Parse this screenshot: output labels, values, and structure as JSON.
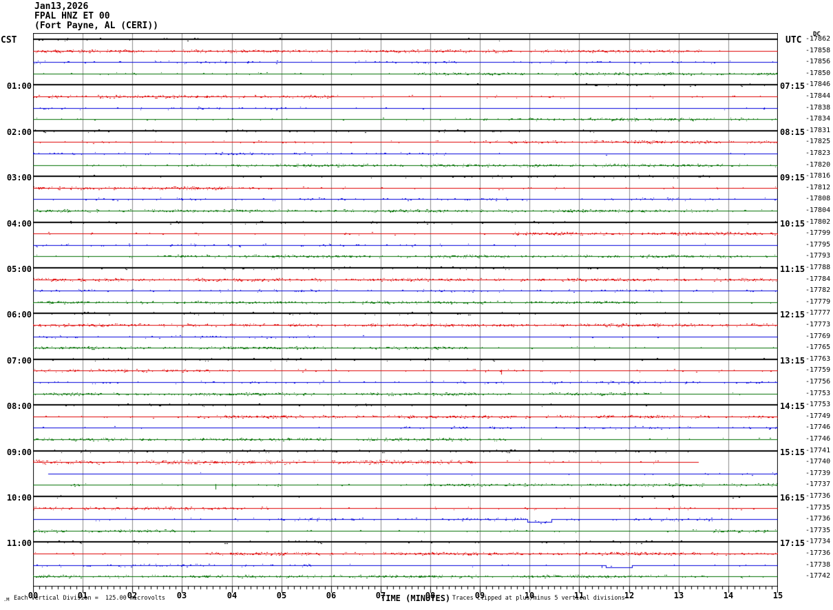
{
  "header": {
    "date_line": "Jan13,2026",
    "station_line": "FPAL HNZ ET 00",
    "location_line": "(Fort Payne, AL (CERI))"
  },
  "axes": {
    "left_header": "CST",
    "right_header": "UTC",
    "right_dc_label": "DC",
    "x_label": "TIME (MINUTES)",
    "x_tick_labels": [
      "00",
      "01",
      "02",
      "03",
      "04",
      "05",
      "06",
      "07",
      "08",
      "09",
      "10",
      "11",
      "12",
      "13",
      "14",
      "15"
    ],
    "minor_ticks_per_minute": 8
  },
  "footer": {
    "watermark": ".M",
    "scale_note": "Each Vertical Division =  125.00 microvolts",
    "clip_note": "Traces clipped at plus/minus 5 vertical divisions"
  },
  "colors": {
    "black": "#000000",
    "red": "#e00000",
    "blue": "#0000dd",
    "green": "#007000",
    "grid": "#8a8a8a",
    "frame": "#000000",
    "text": "#000000",
    "background": "#ffffff"
  },
  "chart_data": {
    "type": "line",
    "subtype": "helicorder",
    "title": "FPAL HNZ ET 00 (Fort Payne, AL (CERI)) Jan13,2026",
    "xlabel": "TIME (MINUTES)",
    "x_range_minutes": [
      0,
      15
    ],
    "minutes_per_row": 15,
    "left_times_are": "CST row start",
    "right_times_are": "UTC row end",
    "trace_color_cycle": [
      "black",
      "red",
      "blue",
      "green"
    ],
    "noise": {
      "black": {
        "d": 0.1,
        "a": 1.6
      },
      "red": {
        "d": 0.45,
        "a": 1.4
      },
      "blue": {
        "d": 0.13,
        "a": 1.3
      },
      "green": {
        "d": 0.42,
        "a": 1.2
      }
    },
    "rows": [
      {
        "n": 1,
        "c": "black",
        "v": "-17862",
        "dc": true
      },
      {
        "n": 2,
        "c": "red",
        "v": "-17858"
      },
      {
        "n": 3,
        "c": "blue",
        "v": "-17856"
      },
      {
        "n": 4,
        "c": "green",
        "v": "-17850"
      },
      {
        "n": 5,
        "c": "black",
        "v": "-17846",
        "cst": "01:00",
        "utc": "07:15"
      },
      {
        "n": 6,
        "c": "red",
        "v": "-17844"
      },
      {
        "n": 7,
        "c": "blue",
        "v": "-17838"
      },
      {
        "n": 8,
        "c": "green",
        "v": "-17834"
      },
      {
        "n": 9,
        "c": "black",
        "v": "-17831",
        "cst": "02:00",
        "utc": "08:15"
      },
      {
        "n": 10,
        "c": "red",
        "v": "-17825"
      },
      {
        "n": 11,
        "c": "blue",
        "v": "-17823"
      },
      {
        "n": 12,
        "c": "green",
        "v": "-17820"
      },
      {
        "n": 13,
        "c": "black",
        "v": "-17816",
        "cst": "03:00",
        "utc": "09:15"
      },
      {
        "n": 14,
        "c": "red",
        "v": "-17812"
      },
      {
        "n": 15,
        "c": "blue",
        "v": "-17808"
      },
      {
        "n": 16,
        "c": "green",
        "v": "-17804"
      },
      {
        "n": 17,
        "c": "black",
        "v": "-17802",
        "cst": "04:00",
        "utc": "10:15"
      },
      {
        "n": 18,
        "c": "red",
        "v": "-17799"
      },
      {
        "n": 19,
        "c": "blue",
        "v": "-17795"
      },
      {
        "n": 20,
        "c": "green",
        "v": "-17793"
      },
      {
        "n": 21,
        "c": "black",
        "v": "-17788",
        "cst": "05:00",
        "utc": "11:15"
      },
      {
        "n": 22,
        "c": "red",
        "v": "-17784"
      },
      {
        "n": 23,
        "c": "blue",
        "v": "-17782"
      },
      {
        "n": 24,
        "c": "green",
        "v": "-17779"
      },
      {
        "n": 25,
        "c": "black",
        "v": "-17777",
        "cst": "06:00",
        "utc": "12:15"
      },
      {
        "n": 26,
        "c": "red",
        "v": "-17773"
      },
      {
        "n": 27,
        "c": "blue",
        "v": "-17769"
      },
      {
        "n": 28,
        "c": "green",
        "v": "-17765"
      },
      {
        "n": 29,
        "c": "black",
        "v": "-17763",
        "cst": "07:00",
        "utc": "13:15"
      },
      {
        "n": 30,
        "c": "red",
        "v": "-17759"
      },
      {
        "n": 31,
        "c": "blue",
        "v": "-17756"
      },
      {
        "n": 32,
        "c": "green",
        "v": "-17753"
      },
      {
        "n": 33,
        "c": "black",
        "v": "-17753",
        "cst": "08:00",
        "utc": "14:15"
      },
      {
        "n": 34,
        "c": "red",
        "v": "-17749"
      },
      {
        "n": 35,
        "c": "blue",
        "v": "-17746"
      },
      {
        "n": 36,
        "c": "green",
        "v": "-17746"
      },
      {
        "n": 37,
        "c": "black",
        "v": "-17741",
        "cst": "09:00",
        "utc": "15:15"
      },
      {
        "n": 38,
        "c": "red",
        "v": "-17740",
        "d": 0.55,
        "a": 2.2
      },
      {
        "n": 39,
        "c": "blue",
        "v": "-17739",
        "d": 0.05
      },
      {
        "n": 40,
        "c": "green",
        "v": "-17737"
      },
      {
        "n": 41,
        "c": "black",
        "v": "-17736",
        "cst": "10:00",
        "utc": "16:15"
      },
      {
        "n": 42,
        "c": "red",
        "v": "-17735"
      },
      {
        "n": 43,
        "c": "blue",
        "v": "-17736",
        "d": 0.2
      },
      {
        "n": 44,
        "c": "green",
        "v": "-17735"
      },
      {
        "n": 45,
        "c": "black",
        "v": "-17734",
        "cst": "11:00",
        "utc": "17:15"
      },
      {
        "n": 46,
        "c": "red",
        "v": "-17736",
        "d": 0.5
      },
      {
        "n": 47,
        "c": "blue",
        "v": "-17738",
        "d": 0.18
      },
      {
        "n": 48,
        "c": "green",
        "v": "-17742"
      }
    ],
    "events": [
      {
        "row": 30,
        "type": "spike",
        "minute": 9.11,
        "up": 0,
        "down": 2
      },
      {
        "row": 30,
        "type": "spike",
        "minute": 9.43,
        "up": 1,
        "down": 5
      },
      {
        "row": 38,
        "type": "end",
        "minute": 13.4
      },
      {
        "row": 39,
        "type": "start",
        "minute": 0.31
      },
      {
        "row": 40,
        "type": "spike",
        "minute": 3.67,
        "up": 1,
        "down": 6
      },
      {
        "row": 40,
        "type": "spike",
        "minute": 4.0,
        "up": 2,
        "down": 2
      },
      {
        "row": 43,
        "type": "spike",
        "minute": 9.7,
        "up": 2,
        "down": 0
      },
      {
        "row": 43,
        "type": "dip",
        "from": 9.95,
        "to": 10.42,
        "depth": 4
      },
      {
        "row": 47,
        "type": "spike",
        "minute": 11.45,
        "up": 0,
        "down": 3
      },
      {
        "row": 47,
        "type": "dip",
        "from": 11.53,
        "to": 12.05,
        "depth": 3
      }
    ],
    "clip_note": "Traces clipped at plus/minus 5 vertical divisions",
    "scale_note": "Each Vertical Division =  125.00 microvolts"
  }
}
